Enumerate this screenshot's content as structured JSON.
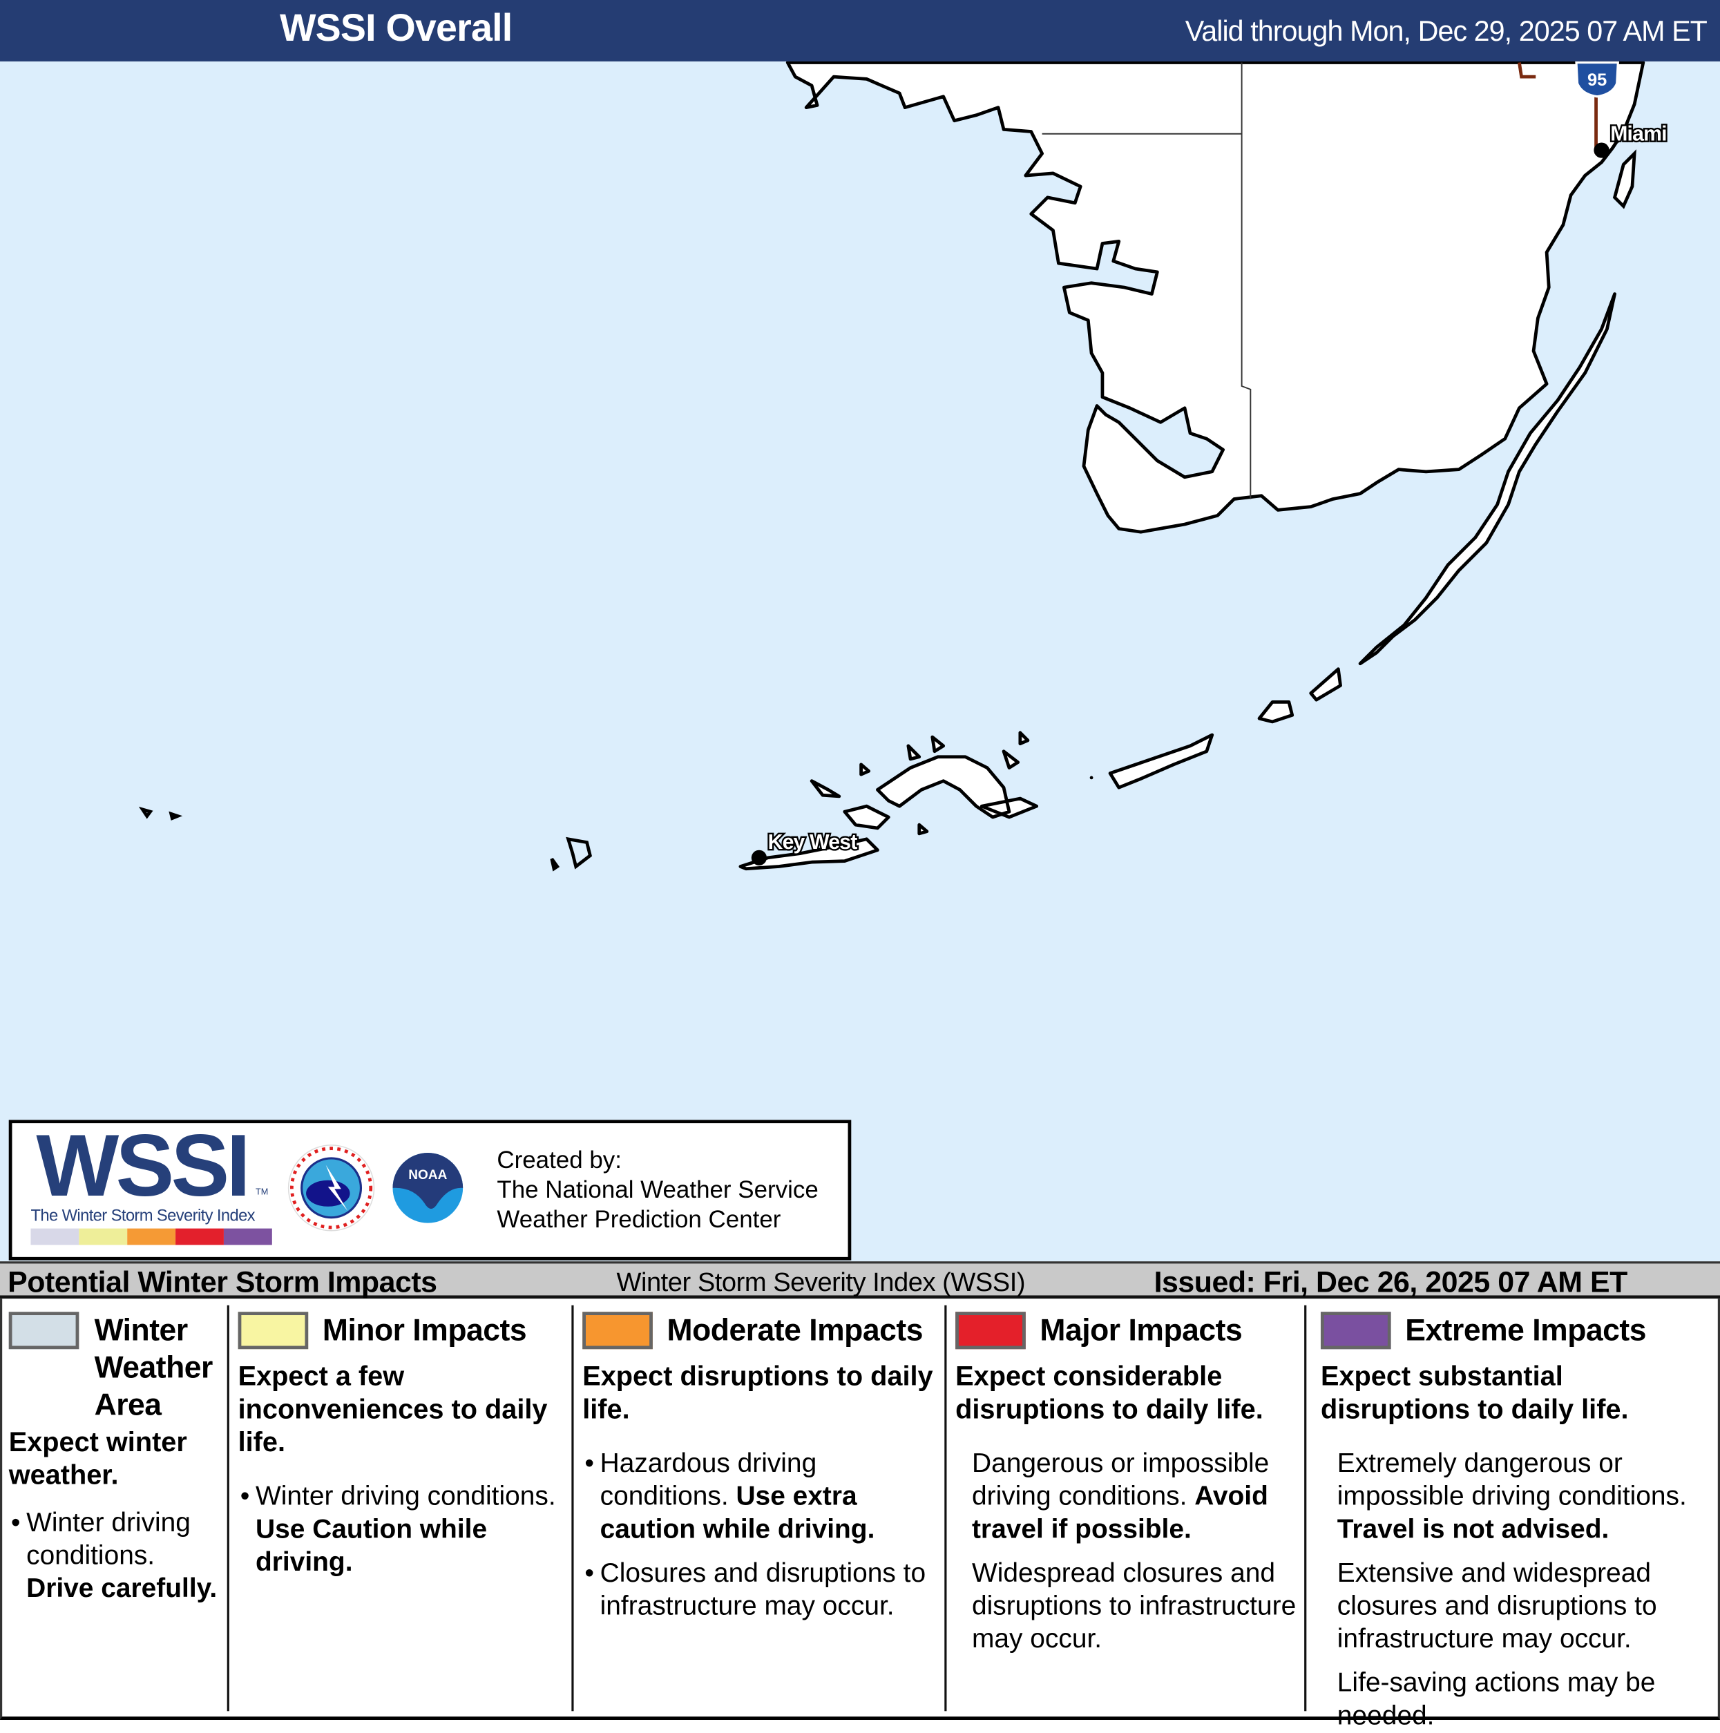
{
  "header": {
    "title": "WSSI Overall",
    "valid": "Valid through Mon, Dec 29, 2025 07 AM ET"
  },
  "map": {
    "colors": {
      "water": "#dceefc",
      "land": "#ffffff",
      "coast": "#000000",
      "highway": "#7a2a10",
      "shield": "#1f4fa0"
    },
    "highway_shield": "95",
    "cities": [
      {
        "name": "Miami"
      },
      {
        "name": "Key West"
      }
    ]
  },
  "logo": {
    "wordmark": "WSSI",
    "tm": "TM",
    "subtitle": "The Winter Storm Severity Index",
    "colorbar": [
      "#d8d8e8",
      "#eeee99",
      "#f59a35",
      "#e3202c",
      "#7d52a0"
    ],
    "nws_text": "NATIONAL WEATHER SERVICE",
    "noaa_text": "NOAA",
    "created_by": "Created by:",
    "creator1": "The National Weather Service",
    "creator2": "Weather Prediction Center"
  },
  "legend": {
    "title": "Potential Winter Storm Impacts",
    "subtitle": "Winter Storm Severity Index (WSSI)",
    "issued": "Issued: Fri, Dec 26, 2025 07 AM ET",
    "columns": [
      {
        "title": "Winter Weather Area",
        "color": "#d3dfe7",
        "heading": "Expect winter weather.",
        "paras": [
          {
            "bullet": true,
            "segs": [
              {
                "t": "Winter driving conditions. "
              },
              {
                "t": "Drive carefully.",
                "b": true
              }
            ]
          }
        ]
      },
      {
        "title": "Minor Impacts",
        "color": "#f8f5a2",
        "heading": "Expect a few inconveniences to daily life.",
        "paras": [
          {
            "bullet": true,
            "segs": [
              {
                "t": "Winter driving conditions. "
              },
              {
                "t": "Use Caution while driving.",
                "b": true
              }
            ]
          }
        ]
      },
      {
        "title": "Moderate Impacts",
        "color": "#f7962f",
        "heading": "Expect disruptions to daily life.",
        "paras": [
          {
            "bullet": true,
            "segs": [
              {
                "t": "Hazardous driving conditions. "
              },
              {
                "t": "Use extra caution while driving.",
                "b": true
              }
            ]
          },
          {
            "bullet": true,
            "segs": [
              {
                "t": "Closures and disruptions to infrastructure may occur."
              }
            ]
          }
        ]
      },
      {
        "title": "Major Impacts",
        "color": "#e4202a",
        "heading": "Expect considerable disruptions to daily life.",
        "paras": [
          {
            "bullet": false,
            "segs": [
              {
                "t": "Dangerous or impossible driving conditions. "
              },
              {
                "t": "Avoid travel if possible.",
                "b": true
              }
            ]
          },
          {
            "bullet": false,
            "segs": [
              {
                "t": "Widespread closures and disruptions to infrastructure may occur."
              }
            ]
          }
        ]
      },
      {
        "title": "Extreme Impacts",
        "color": "#7a50a0",
        "heading": "Expect substantial disruptions to daily life.",
        "paras": [
          {
            "bullet": false,
            "segs": [
              {
                "t": "Extremely dangerous or impossible driving conditions. "
              },
              {
                "t": "Travel is not advised.",
                "b": true
              }
            ]
          },
          {
            "bullet": false,
            "segs": [
              {
                "t": "Extensive and widespread closures and disruptions to infrastructure may occur."
              }
            ]
          },
          {
            "bullet": false,
            "segs": [
              {
                "t": "Life-saving actions may be needed."
              }
            ]
          }
        ]
      }
    ]
  }
}
